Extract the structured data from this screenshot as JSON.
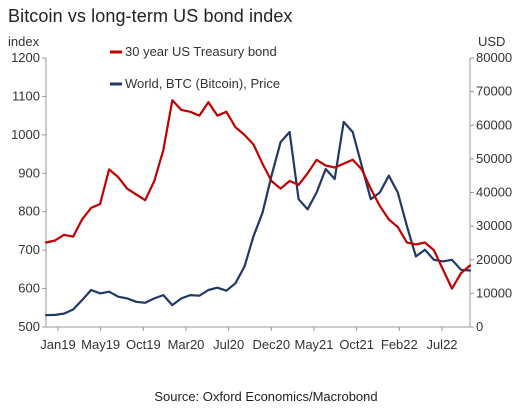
{
  "title": "Bitcoin vs long-term US bond index",
  "source": "Source: Oxford Economics/Macrobond",
  "colors": {
    "bond": "#c00000",
    "btc": "#1f3864",
    "axis": "#999999"
  },
  "chart_data": {
    "type": "line",
    "title": "Bitcoin vs long-term US bond index",
    "left_axis_unit": "index",
    "right_axis_unit": "USD",
    "left_ylim": [
      500,
      1200
    ],
    "right_ylim": [
      0,
      80000
    ],
    "left_ticks": [
      "500",
      "600",
      "700",
      "800",
      "900",
      "1000",
      "1100",
      "1200"
    ],
    "right_ticks": [
      "0",
      "10000",
      "20000",
      "30000",
      "40000",
      "50000",
      "60000",
      "70000",
      "80000"
    ],
    "x_ticks": [
      "Jan19",
      "May19",
      "Oct19",
      "Mar20",
      "Jul20",
      "Dec20",
      "May21",
      "Oct21",
      "Feb22",
      "Jul22"
    ],
    "x_range": [
      "2019-01",
      "2022-12"
    ],
    "legend_position": "top-left",
    "series": [
      {
        "name": "30 year US Treasury bond",
        "axis": "left",
        "x": [
          "2019-01",
          "2019-02",
          "2019-03",
          "2019-04",
          "2019-05",
          "2019-06",
          "2019-07",
          "2019-08",
          "2019-09",
          "2019-10",
          "2019-11",
          "2019-12",
          "2020-01",
          "2020-02",
          "2020-03",
          "2020-04",
          "2020-05",
          "2020-06",
          "2020-07",
          "2020-08",
          "2020-09",
          "2020-10",
          "2020-11",
          "2020-12",
          "2021-01",
          "2021-02",
          "2021-03",
          "2021-04",
          "2021-05",
          "2021-06",
          "2021-07",
          "2021-08",
          "2021-09",
          "2021-10",
          "2021-11",
          "2021-12",
          "2022-01",
          "2022-02",
          "2022-03",
          "2022-04",
          "2022-05",
          "2022-06",
          "2022-07",
          "2022-08",
          "2022-09",
          "2022-10",
          "2022-11",
          "2022-12"
        ],
        "values": [
          720,
          725,
          740,
          735,
          780,
          810,
          820,
          910,
          890,
          860,
          845,
          830,
          880,
          960,
          1090,
          1065,
          1060,
          1050,
          1085,
          1050,
          1060,
          1020,
          1000,
          975,
          925,
          880,
          860,
          880,
          870,
          900,
          935,
          920,
          915,
          925,
          935,
          910,
          860,
          815,
          780,
          760,
          720,
          715,
          720,
          700,
          650,
          600,
          640,
          660
        ]
      },
      {
        "name": "World, BTC (Bitcoin), Price",
        "axis": "right",
        "x": [
          "2019-01",
          "2019-02",
          "2019-03",
          "2019-04",
          "2019-05",
          "2019-06",
          "2019-07",
          "2019-08",
          "2019-09",
          "2019-10",
          "2019-11",
          "2019-12",
          "2020-01",
          "2020-02",
          "2020-03",
          "2020-04",
          "2020-05",
          "2020-06",
          "2020-07",
          "2020-08",
          "2020-09",
          "2020-10",
          "2020-11",
          "2020-12",
          "2021-01",
          "2021-02",
          "2021-03",
          "2021-04",
          "2021-05",
          "2021-06",
          "2021-07",
          "2021-08",
          "2021-09",
          "2021-10",
          "2021-11",
          "2021-12",
          "2022-01",
          "2022-02",
          "2022-03",
          "2022-04",
          "2022-05",
          "2022-06",
          "2022-07",
          "2022-08",
          "2022-09",
          "2022-10",
          "2022-11",
          "2022-12"
        ],
        "values": [
          3500,
          3600,
          4000,
          5200,
          8000,
          11000,
          10000,
          10500,
          9000,
          8500,
          7500,
          7200,
          8500,
          9500,
          6500,
          8500,
          9500,
          9300,
          11000,
          11700,
          10800,
          13000,
          18000,
          27000,
          34000,
          45000,
          55000,
          58000,
          38000,
          35000,
          40000,
          47000,
          44000,
          61000,
          58000,
          48000,
          38000,
          40000,
          45000,
          40000,
          30000,
          21000,
          23000,
          20000,
          19500,
          20000,
          17000,
          16800
        ]
      }
    ]
  }
}
